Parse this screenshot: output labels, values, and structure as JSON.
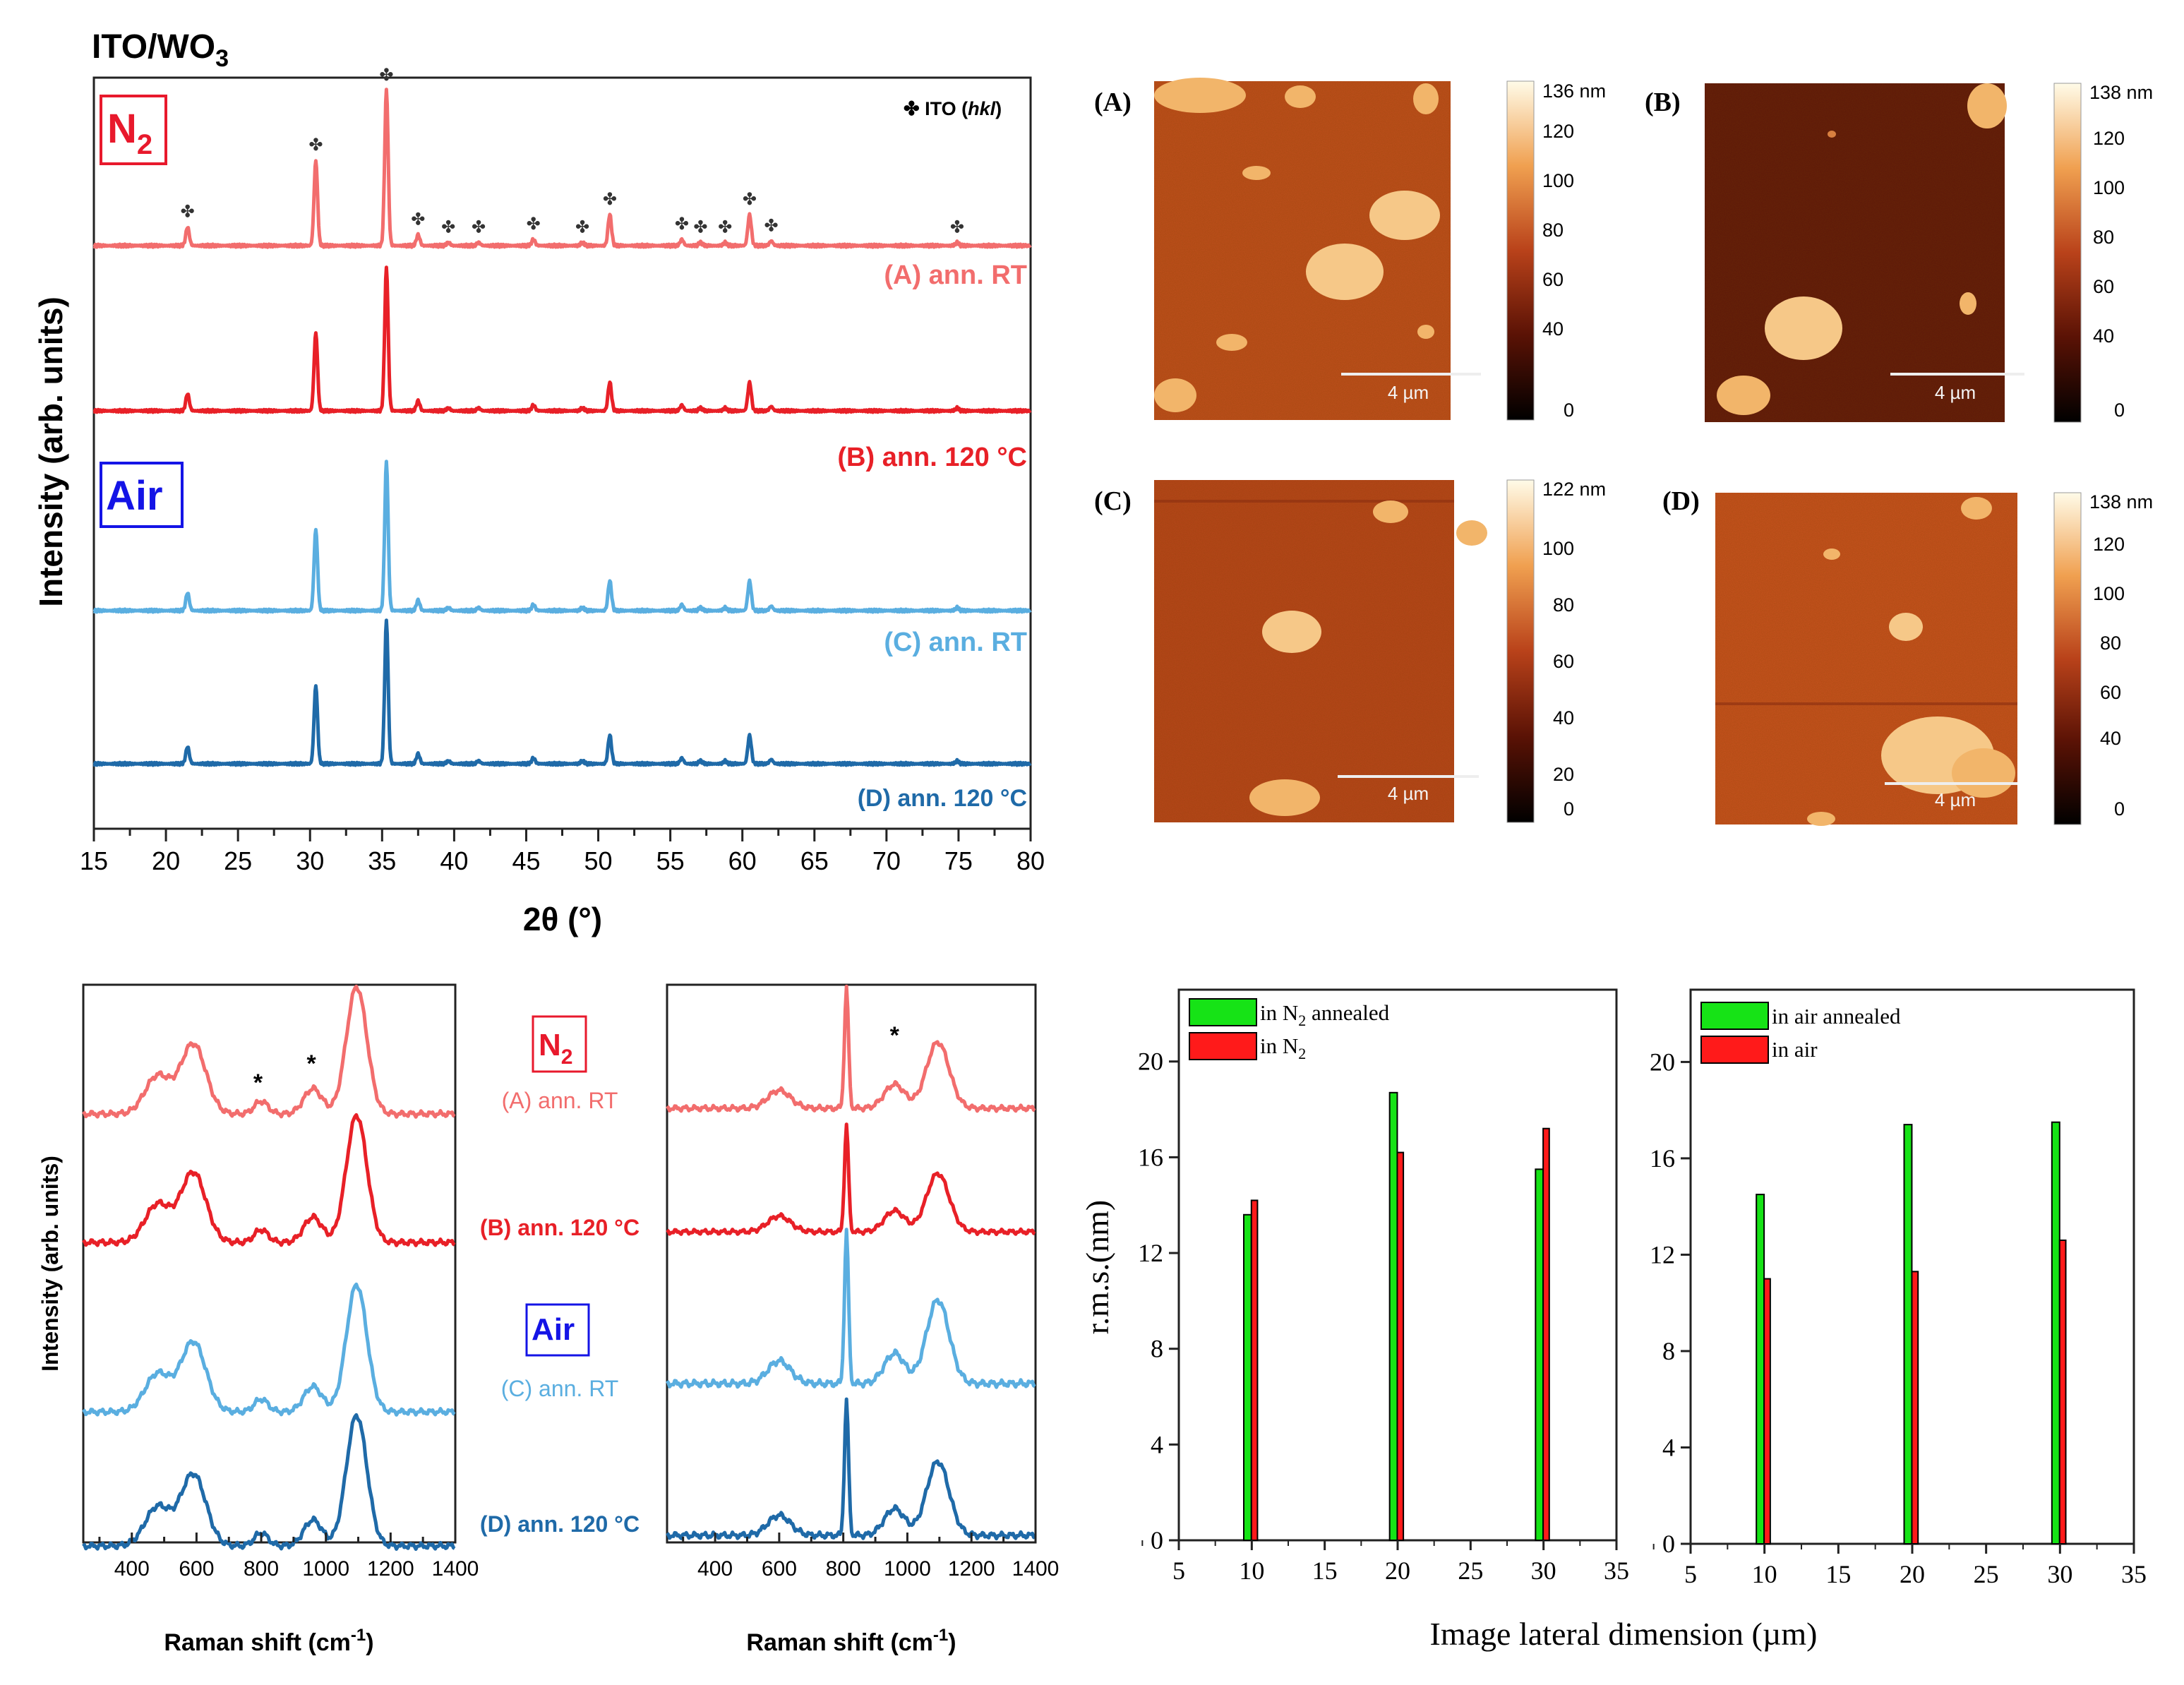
{
  "figure": {
    "xrd_title_main": "ITO/WO",
    "xrd_title_sub": "3",
    "n2_badge_main": "N",
    "n2_badge_sub": "2",
    "air_badge": "Air",
    "ito_legend_symbol": "✤",
    "ito_legend_main": "ITO (",
    "ito_legend_hkl": "hkl",
    "ito_legend_close": ")",
    "afm_scale_label": "4 µm",
    "raman_ylabel": "Intensity (arb. units)",
    "raman_xlabel": "Raman shift (cm",
    "raman_xlabel_sup": "-1",
    "raman_xlabel_close": ")",
    "raman_star": "*",
    "rms_xlabel": "Image lateral dimension (µm)",
    "colors": {
      "A": "#f26d6d",
      "B": "#e82027",
      "C": "#5aaee0",
      "D": "#1f6aa8",
      "green": "#16e316",
      "red": "#ff1a1a",
      "n2_badge": "#e8192c",
      "air_badge": "#1414e6"
    }
  },
  "chart_data": [
    {
      "type": "line",
      "id": "xrd",
      "title": "ITO/WO3",
      "xlabel": "2θ (°)",
      "ylabel": "Intensity (arb. units)",
      "xlim": [
        15,
        80
      ],
      "xticks": [
        15,
        20,
        25,
        30,
        35,
        40,
        45,
        50,
        55,
        60,
        65,
        70,
        75,
        80
      ],
      "series": [
        {
          "key": "A",
          "name": "(A) ann. RT"
        },
        {
          "key": "B",
          "name": "(B) ann. 120 °C"
        },
        {
          "key": "C",
          "name": "(C) ann. RT"
        },
        {
          "key": "D",
          "name": "(D) ann. 120 °C"
        }
      ],
      "peaks": [
        {
          "x": 21.5,
          "h": 0.12
        },
        {
          "x": 30.4,
          "h": 0.55
        },
        {
          "x": 35.3,
          "h": 1.0
        },
        {
          "x": 37.5,
          "h": 0.07
        },
        {
          "x": 39.6,
          "h": 0.02
        },
        {
          "x": 41.7,
          "h": 0.02
        },
        {
          "x": 45.5,
          "h": 0.04
        },
        {
          "x": 48.9,
          "h": 0.02
        },
        {
          "x": 50.8,
          "h": 0.2
        },
        {
          "x": 55.8,
          "h": 0.04
        },
        {
          "x": 57.1,
          "h": 0.02
        },
        {
          "x": 58.8,
          "h": 0.02
        },
        {
          "x": 60.5,
          "h": 0.2
        },
        {
          "x": 62.0,
          "h": 0.03
        },
        {
          "x": 74.9,
          "h": 0.02
        }
      ],
      "ito_marker_positions": [
        21.5,
        30.4,
        35.3,
        37.5,
        39.6,
        41.7,
        45.5,
        48.9,
        50.8,
        55.8,
        57.1,
        58.8,
        60.5,
        62.0,
        74.9
      ]
    },
    {
      "type": "heatmap",
      "id": "afm",
      "panels": [
        {
          "label": "(A)",
          "max_label": "136 nm",
          "ticks": [
            "120",
            "100",
            "80",
            "60",
            "40",
            "0"
          ]
        },
        {
          "label": "(B)",
          "max_label": "138 nm",
          "ticks": [
            "120",
            "100",
            "80",
            "60",
            "40",
            "0"
          ]
        },
        {
          "label": "(C)",
          "max_label": "122 nm",
          "ticks": [
            "100",
            "80",
            "60",
            "40",
            "20",
            "0"
          ]
        },
        {
          "label": "(D)",
          "max_label": "138 nm",
          "ticks": [
            "120",
            "100",
            "80",
            "60",
            "40",
            "0"
          ]
        }
      ],
      "scale_bar": "4 µm"
    },
    {
      "type": "line",
      "id": "raman",
      "xlabel": "Raman shift (cm-1)",
      "ylabel": "Intensity (arb. units)",
      "xlim": [
        250,
        1400
      ],
      "xticks": [
        400,
        600,
        800,
        1000,
        1200,
        1400
      ],
      "labels": {
        "n2": "N2",
        "a": "(A) ann. RT",
        "b": "(B) ann. 120 °C",
        "air": "Air",
        "c": "(C) ann. RT",
        "d": "(D) ann. 120 °C"
      },
      "left_peaks": [
        {
          "x": 480,
          "h": 0.3,
          "w": 55
        },
        {
          "x": 590,
          "h": 0.55,
          "w": 55
        },
        {
          "x": 800,
          "h": 0.1,
          "w": 30
        },
        {
          "x": 960,
          "h": 0.2,
          "w": 40
        },
        {
          "x": 1095,
          "h": 1.0,
          "w": 45
        }
      ],
      "right_peaks": [
        {
          "x": 600,
          "h": 0.15,
          "w": 50
        },
        {
          "x": 810,
          "h": 1.0,
          "w": 9
        },
        {
          "x": 960,
          "h": 0.2,
          "w": 45
        },
        {
          "x": 1095,
          "h": 0.55,
          "w": 50
        }
      ],
      "star_positions_left": [
        790,
        955
      ],
      "star_positions_right": [
        960
      ]
    },
    {
      "type": "bar",
      "id": "rms_n2",
      "ylabel": "r.m.s.(nm)",
      "xlabel": "Image lateral dimension (µm)",
      "xlim": [
        5,
        35
      ],
      "ylim": [
        0,
        23
      ],
      "xticks": [
        5,
        10,
        15,
        20,
        25,
        30,
        35
      ],
      "yticks": [
        0,
        4,
        8,
        12,
        16,
        20
      ],
      "categories": [
        10,
        20,
        30
      ],
      "series": [
        {
          "name": "in N2 annealed",
          "name_main": "in N",
          "name_sub": "2",
          "name_tail": " annealed",
          "color": "#16e316",
          "values": [
            13.6,
            18.7,
            15.5
          ]
        },
        {
          "name": "in N2",
          "name_main": "in N",
          "name_sub": "2",
          "name_tail": "",
          "color": "#ff1a1a",
          "values": [
            14.2,
            16.2,
            17.2
          ]
        }
      ]
    },
    {
      "type": "bar",
      "id": "rms_air",
      "ylabel": "",
      "xlabel": "",
      "xlim": [
        5,
        35
      ],
      "ylim": [
        0,
        23
      ],
      "xticks": [
        5,
        10,
        15,
        20,
        25,
        30,
        35
      ],
      "yticks": [
        0,
        4,
        8,
        12,
        16,
        20
      ],
      "categories": [
        10,
        20,
        30
      ],
      "series": [
        {
          "name": "in air annealed",
          "name_main": "in air annealed",
          "name_sub": "",
          "name_tail": "",
          "color": "#16e316",
          "values": [
            14.5,
            17.4,
            17.5
          ]
        },
        {
          "name": "in air",
          "name_main": "in air",
          "name_sub": "",
          "name_tail": "",
          "color": "#ff1a1a",
          "values": [
            11.0,
            11.3,
            12.6
          ]
        }
      ]
    }
  ]
}
